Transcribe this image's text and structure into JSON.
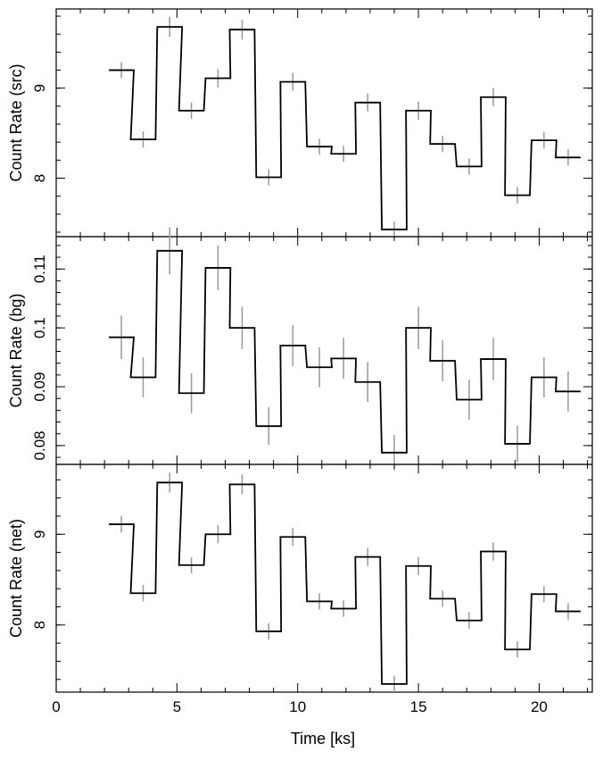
{
  "chart_data": [
    {
      "type": "line",
      "id": "src",
      "ylabel": "Count Rate (src)",
      "ylim": [
        7.35,
        9.88
      ],
      "yticks_major": [
        8,
        9
      ],
      "yticks_minor_step": 0.2,
      "x": [
        2.7,
        3.6,
        4.7,
        5.6,
        6.7,
        7.7,
        8.8,
        9.8,
        10.9,
        11.9,
        12.9,
        14.0,
        15.0,
        16.0,
        17.1,
        18.1,
        19.1,
        20.2,
        21.2
      ],
      "values": [
        9.2,
        8.43,
        9.68,
        8.75,
        9.11,
        9.65,
        8.01,
        9.07,
        8.35,
        8.27,
        8.84,
        7.43,
        8.75,
        8.38,
        8.13,
        8.9,
        7.81,
        8.42,
        8.23
      ],
      "errors": [
        0.09,
        0.09,
        0.11,
        0.09,
        0.1,
        0.11,
        0.09,
        0.1,
        0.09,
        0.09,
        0.1,
        0.09,
        0.1,
        0.09,
        0.09,
        0.1,
        0.09,
        0.09,
        0.09
      ]
    },
    {
      "type": "line",
      "id": "bg",
      "ylabel": "Count Rate (bg)",
      "ylim": [
        0.0768,
        0.1155
      ],
      "yticks_major": [
        0.08,
        0.09,
        0.1,
        0.11
      ],
      "yticks_minor_step": 0.002,
      "x": [
        2.7,
        3.6,
        4.7,
        5.6,
        6.7,
        7.7,
        8.8,
        9.8,
        10.9,
        11.9,
        12.9,
        14.0,
        15.0,
        16.0,
        17.1,
        18.1,
        19.1,
        20.2,
        21.2
      ],
      "values": [
        0.0984,
        0.0916,
        0.1131,
        0.0889,
        0.1102,
        0.1,
        0.0833,
        0.097,
        0.0933,
        0.0948,
        0.0908,
        0.0788,
        0.1,
        0.0944,
        0.0878,
        0.0947,
        0.0803,
        0.0916,
        0.0892
      ],
      "errors": [
        0.0037,
        0.0034,
        0.004,
        0.0034,
        0.0038,
        0.0036,
        0.0032,
        0.0035,
        0.0034,
        0.0035,
        0.0034,
        0.003,
        0.0036,
        0.0035,
        0.0034,
        0.0036,
        0.0031,
        0.0034,
        0.0034
      ]
    },
    {
      "type": "line",
      "id": "net",
      "ylabel": "Count Rate (net)",
      "ylim": [
        7.26,
        9.77
      ],
      "yticks_major": [
        8,
        9
      ],
      "yticks_minor_step": 0.2,
      "x": [
        2.7,
        3.6,
        4.7,
        5.6,
        6.7,
        7.7,
        8.8,
        9.8,
        10.9,
        11.9,
        12.9,
        14.0,
        15.0,
        16.0,
        17.1,
        18.1,
        19.1,
        20.2,
        21.2
      ],
      "values": [
        9.11,
        8.35,
        9.57,
        8.66,
        9.0,
        9.55,
        7.93,
        8.97,
        8.26,
        8.18,
        8.75,
        7.35,
        8.65,
        8.29,
        8.05,
        8.81,
        7.73,
        8.34,
        8.15
      ],
      "errors": [
        0.09,
        0.09,
        0.11,
        0.09,
        0.1,
        0.11,
        0.09,
        0.1,
        0.09,
        0.09,
        0.1,
        0.09,
        0.1,
        0.09,
        0.09,
        0.1,
        0.09,
        0.09,
        0.09
      ]
    }
  ],
  "x_axis": {
    "xlabel": "Time [ks]",
    "xlim": [
      0,
      22.2
    ],
    "xticks_major": [
      0,
      5,
      10,
      15,
      20
    ],
    "xticks_minor_step": 1,
    "bin_width": 1.03
  },
  "colors": {
    "step_line": "#000000",
    "error_bars": "#999999",
    "frame": "#000000"
  }
}
